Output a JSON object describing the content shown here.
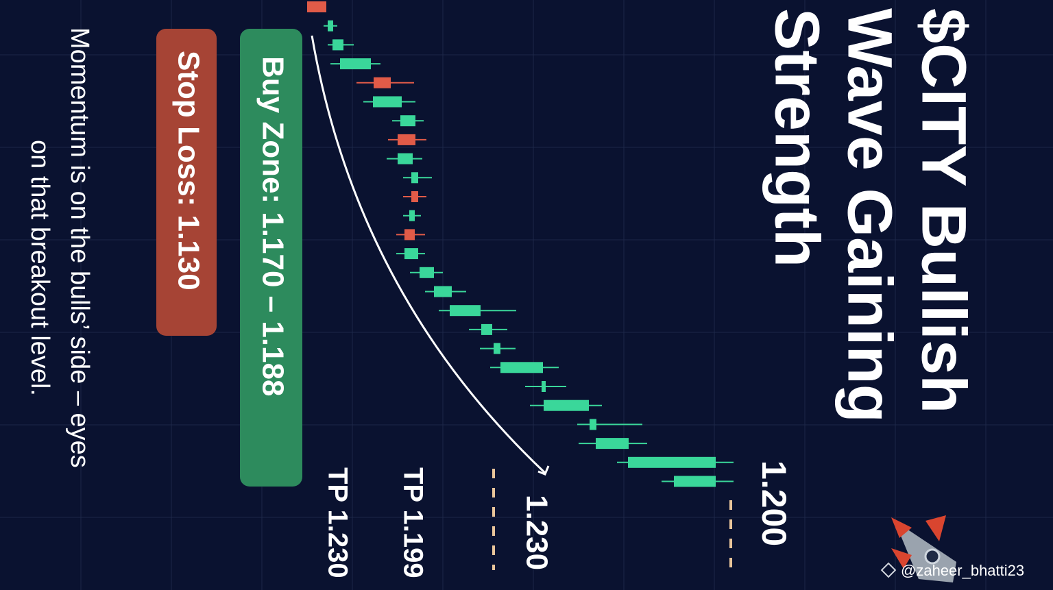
{
  "chart_data": {
    "type": "candlestick",
    "title": [
      "$CITY Bullish",
      "Wave Gaining",
      "Strength"
    ],
    "annotations": {
      "buy_zone": "Buy Zone: 1.170 – 1.188",
      "stop_loss": "Stop Loss: 1.130",
      "note": [
        "Momentum is on the bulls’ side – eyes",
        "on that breakout level."
      ],
      "tp1": "TP 1.230",
      "tp2": "TP 1.199",
      "level_a": "1.230",
      "level_b": "1.200",
      "handle": "@zaheer_bhatti23"
    },
    "categories": [
      null,
      null,
      null,
      null,
      null,
      null,
      null,
      null,
      null,
      null,
      null,
      null,
      null,
      null,
      null,
      null,
      null,
      null,
      null,
      null,
      null,
      null,
      null,
      null,
      null,
      null
    ],
    "open": [
      1.1072,
      1.1076,
      1.109,
      1.1112,
      1.126,
      1.1208,
      1.1288,
      1.1332,
      1.128,
      1.132,
      1.134,
      1.1314,
      1.133,
      1.13,
      1.1344,
      1.1386,
      1.1432,
      1.1524,
      1.156,
      1.158,
      1.17,
      1.1706,
      1.184,
      1.1858,
      1.1952,
      1.2086
    ],
    "high": [
      1.1072,
      1.1104,
      1.1152,
      1.123,
      1.1328,
      1.1332,
      1.1356,
      1.1364,
      1.1352,
      1.138,
      1.1364,
      1.1348,
      1.136,
      1.136,
      1.1412,
      1.148,
      1.1626,
      1.16,
      1.1624,
      1.175,
      1.1772,
      1.1876,
      1.1994,
      1.2008,
      1.226,
      1.226
    ],
    "low": [
      1.1016,
      1.1064,
      1.1076,
      1.1084,
      1.116,
      1.118,
      1.1264,
      1.1252,
      1.1248,
      1.1296,
      1.1296,
      1.1296,
      1.1276,
      1.1276,
      1.1316,
      1.136,
      1.14,
      1.1488,
      1.152,
      1.155,
      1.1652,
      1.1666,
      1.1804,
      1.1808,
      1.192,
      1.205
    ],
    "close": [
      1.1016,
      1.1092,
      1.1122,
      1.1202,
      1.121,
      1.1292,
      1.1332,
      1.128,
      1.1324,
      1.134,
      1.132,
      1.133,
      1.13,
      1.134,
      1.1386,
      1.1438,
      1.1522,
      1.1556,
      1.158,
      1.1704,
      1.1712,
      1.1838,
      1.186,
      1.1954,
      1.2208,
      1.2208
    ],
    "up_color": "#3ad79a",
    "down_color": "#e15b48",
    "ylim": [
      1.1,
      1.25
    ],
    "grid": true
  }
}
